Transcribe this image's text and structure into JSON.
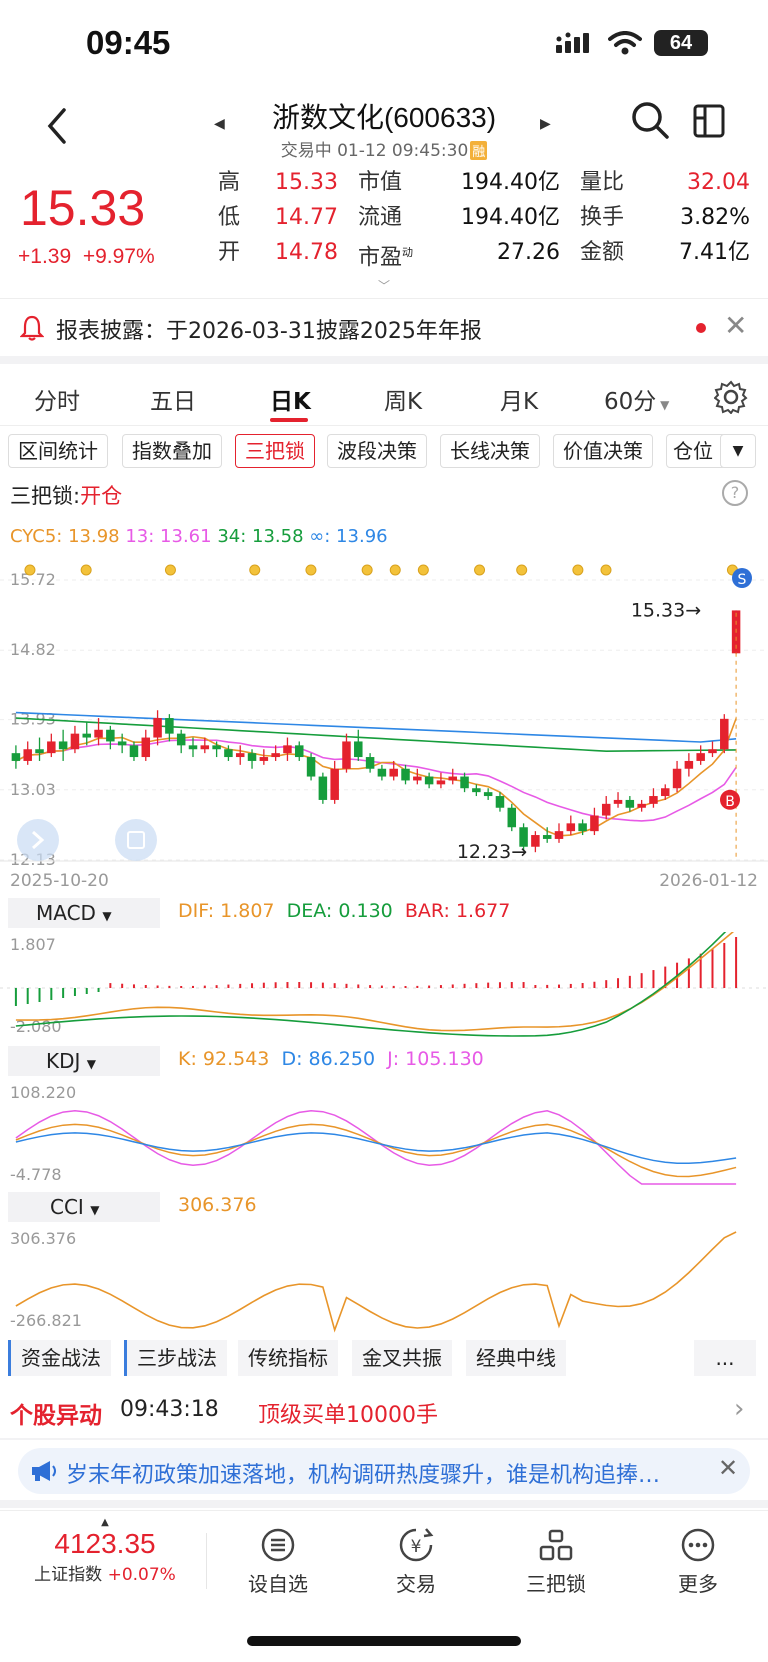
{
  "status_bar": {
    "time": "09:45",
    "battery": "64"
  },
  "header": {
    "title": "浙数文化(600633)",
    "status": "交易中 01-12 09:45:30",
    "badge": "融"
  },
  "quote": {
    "price": "15.33",
    "change": "+1.39",
    "change_pct": "+9.97%",
    "col1": [
      {
        "label": "高",
        "value": "15.33"
      },
      {
        "label": "低",
        "value": "14.77"
      },
      {
        "label": "开",
        "value": "14.78"
      }
    ],
    "col2": [
      {
        "label": "市值",
        "value": "194.40亿"
      },
      {
        "label": "流通",
        "value": "194.40亿"
      },
      {
        "label": "市盈",
        "value": "27.26",
        "sup": "动"
      }
    ],
    "col3": [
      {
        "label": "量比",
        "value": "32.04"
      },
      {
        "label": "换手",
        "value": "3.82%"
      },
      {
        "label": "金额",
        "value": "7.41亿"
      }
    ]
  },
  "notice": {
    "text": "报表披露：于2026-03-31披露2025年年报"
  },
  "tabs": [
    "分时",
    "五日",
    "日K",
    "周K",
    "月K",
    "60分"
  ],
  "active_tab": "日K",
  "toolbar": [
    "区间统计",
    "指数叠加",
    "三把锁",
    "波段决策",
    "长线决策",
    "价值决策",
    "仓位"
  ],
  "indicator": {
    "name": "三把锁:",
    "state": "开仓"
  },
  "ma_legend": {
    "cyc5": "CYC5: 13.98",
    "c13": "13: 13.61",
    "c34": "34: 13.58",
    "cinf": "∞: 13.96"
  },
  "colors": {
    "red": "#e4222e",
    "green": "#169d3c",
    "orange": "#e8952a",
    "pink": "#e75ae6",
    "blue": "#2e87e5"
  },
  "chart_data": {
    "type": "candlestick",
    "y_ticks": [
      "15.72",
      "14.82",
      "13.93",
      "13.03",
      "12.13"
    ],
    "ylim": [
      12.13,
      15.72
    ],
    "x_start": "2025-10-20",
    "x_end": "2026-01-12",
    "annotations": {
      "high": "15.33",
      "low": "12.23",
      "sell_marker": "S",
      "buy_marker": "B"
    },
    "candles": [
      [
        13.5,
        13.4,
        13.6,
        13.3
      ],
      [
        13.4,
        13.55,
        13.65,
        13.35
      ],
      [
        13.55,
        13.5,
        13.7,
        13.4
      ],
      [
        13.5,
        13.65,
        13.75,
        13.45
      ],
      [
        13.65,
        13.55,
        13.8,
        13.4
      ],
      [
        13.55,
        13.75,
        13.85,
        13.5
      ],
      [
        13.75,
        13.7,
        13.9,
        13.6
      ],
      [
        13.7,
        13.8,
        13.95,
        13.6
      ],
      [
        13.8,
        13.65,
        13.85,
        13.55
      ],
      [
        13.65,
        13.6,
        13.75,
        13.5
      ],
      [
        13.6,
        13.45,
        13.65,
        13.4
      ],
      [
        13.45,
        13.7,
        13.8,
        13.4
      ],
      [
        13.7,
        13.95,
        14.05,
        13.6
      ],
      [
        13.95,
        13.75,
        14.0,
        13.65
      ],
      [
        13.75,
        13.6,
        13.8,
        13.5
      ],
      [
        13.6,
        13.55,
        13.7,
        13.45
      ],
      [
        13.55,
        13.6,
        13.7,
        13.5
      ],
      [
        13.6,
        13.55,
        13.65,
        13.45
      ],
      [
        13.55,
        13.45,
        13.6,
        13.4
      ],
      [
        13.45,
        13.5,
        13.6,
        13.35
      ],
      [
        13.5,
        13.4,
        13.55,
        13.3
      ],
      [
        13.4,
        13.45,
        13.55,
        13.35
      ],
      [
        13.45,
        13.5,
        13.6,
        13.4
      ],
      [
        13.5,
        13.6,
        13.7,
        13.4
      ],
      [
        13.6,
        13.45,
        13.65,
        13.4
      ],
      [
        13.45,
        13.2,
        13.5,
        13.15
      ],
      [
        13.2,
        12.9,
        13.25,
        12.85
      ],
      [
        12.9,
        13.3,
        13.4,
        12.85
      ],
      [
        13.3,
        13.65,
        13.75,
        13.25
      ],
      [
        13.65,
        13.45,
        13.8,
        13.4
      ],
      [
        13.45,
        13.3,
        13.5,
        13.25
      ],
      [
        13.3,
        13.2,
        13.35,
        13.15
      ],
      [
        13.2,
        13.3,
        13.4,
        13.15
      ],
      [
        13.3,
        13.15,
        13.35,
        13.1
      ],
      [
        13.15,
        13.2,
        13.3,
        13.1
      ],
      [
        13.2,
        13.1,
        13.25,
        13.05
      ],
      [
        13.1,
        13.15,
        13.25,
        13.05
      ],
      [
        13.15,
        13.2,
        13.3,
        13.1
      ],
      [
        13.2,
        13.05,
        13.25,
        13.0
      ],
      [
        13.05,
        13.0,
        13.1,
        12.95
      ],
      [
        13.0,
        12.95,
        13.05,
        12.9
      ],
      [
        12.95,
        12.8,
        13.0,
        12.75
      ],
      [
        12.8,
        12.55,
        12.85,
        12.5
      ],
      [
        12.55,
        12.3,
        12.6,
        12.25
      ],
      [
        12.3,
        12.45,
        12.5,
        12.23
      ],
      [
        12.45,
        12.4,
        12.55,
        12.35
      ],
      [
        12.4,
        12.5,
        12.6,
        12.35
      ],
      [
        12.5,
        12.6,
        12.7,
        12.45
      ],
      [
        12.6,
        12.5,
        12.65,
        12.45
      ],
      [
        12.5,
        12.7,
        12.8,
        12.45
      ],
      [
        12.7,
        12.85,
        12.95,
        12.65
      ],
      [
        12.85,
        12.9,
        13.0,
        12.8
      ],
      [
        12.9,
        12.8,
        12.95,
        12.75
      ],
      [
        12.8,
        12.85,
        12.9,
        12.75
      ],
      [
        12.85,
        12.95,
        13.05,
        12.8
      ],
      [
        12.95,
        13.05,
        13.1,
        12.9
      ],
      [
        13.05,
        13.3,
        13.4,
        13.0
      ],
      [
        13.3,
        13.4,
        13.5,
        13.2
      ],
      [
        13.4,
        13.5,
        13.6,
        13.35
      ],
      [
        13.5,
        13.55,
        13.65,
        13.45
      ],
      [
        13.55,
        13.94,
        14.0,
        13.5
      ],
      [
        14.78,
        15.33,
        15.33,
        14.77
      ]
    ]
  },
  "macd": {
    "title": "MACD",
    "dif": "DIF: 1.807",
    "dea": "DEA: 0.130",
    "bar": "BAR: 1.677",
    "y_max": "1.807",
    "y_min": "-2.080"
  },
  "kdj": {
    "title": "KDJ",
    "k": "K: 92.543",
    "d": "D: 86.250",
    "j": "J: 105.130",
    "y_max": "108.220",
    "y_min": "-4.778"
  },
  "cci": {
    "title": "CCI",
    "value": "306.376",
    "y_max": "306.376",
    "y_min": "-266.821"
  },
  "bottom_tabs": [
    "资金战法",
    "三步战法",
    "传统指标",
    "金叉共振",
    "经典中线",
    "..."
  ],
  "alert": {
    "label": "个股异动",
    "time": "09:43:18",
    "text": "顶级买单10000手"
  },
  "news": {
    "text": "岁末年初政策加速落地，机构调研热度骤升，谁是机构追捧…"
  },
  "nav": {
    "index_value": "4123.35",
    "index_name": "上证指数",
    "index_change": "+0.07%",
    "items": [
      "设自选",
      "交易",
      "三把锁",
      "更多"
    ]
  }
}
